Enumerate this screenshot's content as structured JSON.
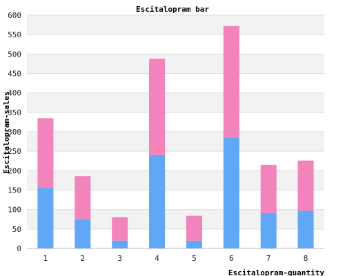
{
  "chart_data": {
    "type": "bar",
    "stacked": true,
    "title": "Escitalopram bar",
    "xlabel": "Escitalopram-quantity",
    "ylabel": "Escitalopram-sales",
    "categories": [
      "1",
      "2",
      "3",
      "4",
      "5",
      "6",
      "7",
      "8"
    ],
    "series": [
      {
        "color": "#60a8f5",
        "values": [
          156,
          75,
          20,
          240,
          20,
          284,
          91,
          97
        ]
      },
      {
        "color": "#f283bb",
        "values": [
          179,
          111,
          60,
          248,
          64,
          288,
          124,
          129
        ]
      }
    ],
    "ylim": [
      0,
      600
    ],
    "yticks": [
      "0",
      "50",
      "100",
      "150",
      "200",
      "250",
      "300",
      "350",
      "400",
      "450",
      "500",
      "550",
      "600"
    ],
    "grid": true,
    "band_colors": [
      "#f2f2f2",
      "#ffffff"
    ]
  }
}
